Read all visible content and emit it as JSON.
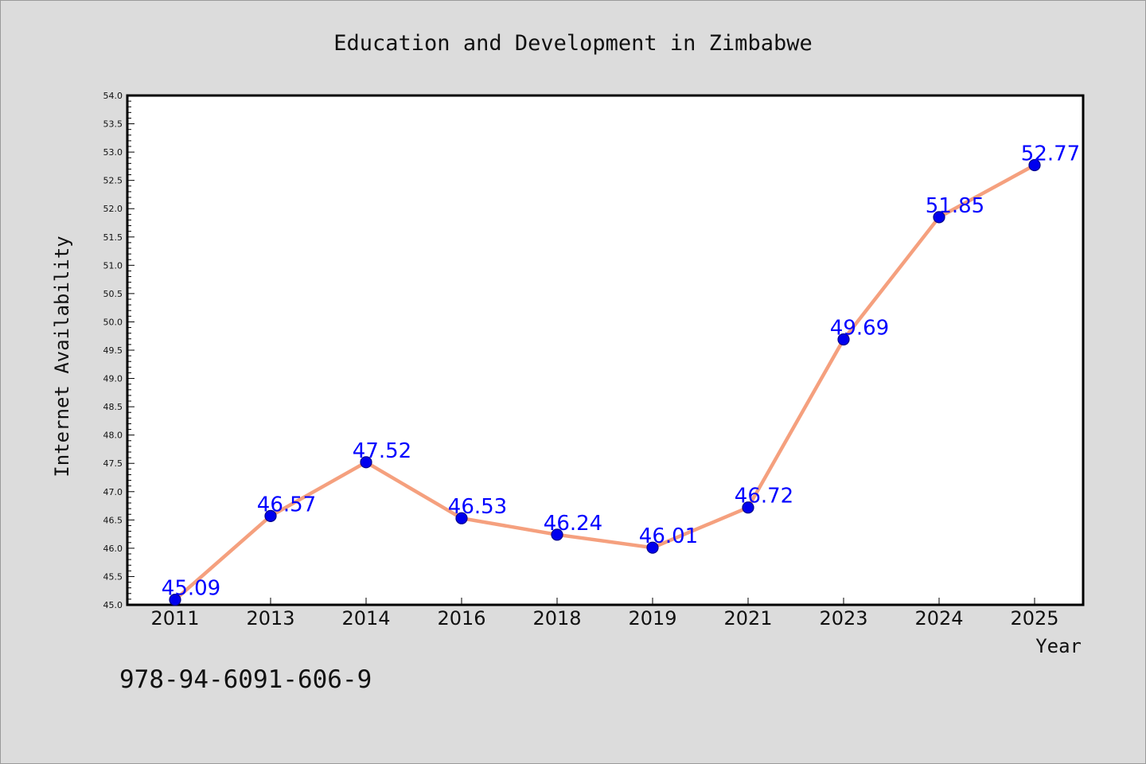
{
  "chart_data": {
    "type": "line",
    "title": "Education and Development in Zimbabwe",
    "xlabel": "Year",
    "ylabel": "Internet Availability",
    "categories": [
      "2011",
      "2013",
      "2014",
      "2016",
      "2018",
      "2019",
      "2021",
      "2023",
      "2024",
      "2025"
    ],
    "values": [
      45.09,
      46.57,
      47.52,
      46.53,
      46.24,
      46.01,
      46.72,
      49.69,
      51.85,
      52.77
    ],
    "data_labels": [
      "45.09",
      "46.57",
      "47.52",
      "46.53",
      "46.24",
      "46.01",
      "46.72",
      "49.69",
      "51.85",
      "52.77"
    ],
    "yticks": [
      "45.0",
      "45.5",
      "46.0",
      "46.5",
      "47.0",
      "47.5",
      "48.0",
      "48.5",
      "49.0",
      "49.5",
      "50.0",
      "50.5",
      "51.0",
      "51.5",
      "52.0",
      "52.5",
      "53.0",
      "53.5",
      "54.0"
    ],
    "ylim": [
      45.0,
      54.0
    ],
    "grid": false,
    "legend": "none",
    "line_color": "#f5a07e",
    "marker_color": "#0000ee",
    "label_color": "#0000ff"
  },
  "footer": {
    "code": "978-94-6091-606-9"
  }
}
